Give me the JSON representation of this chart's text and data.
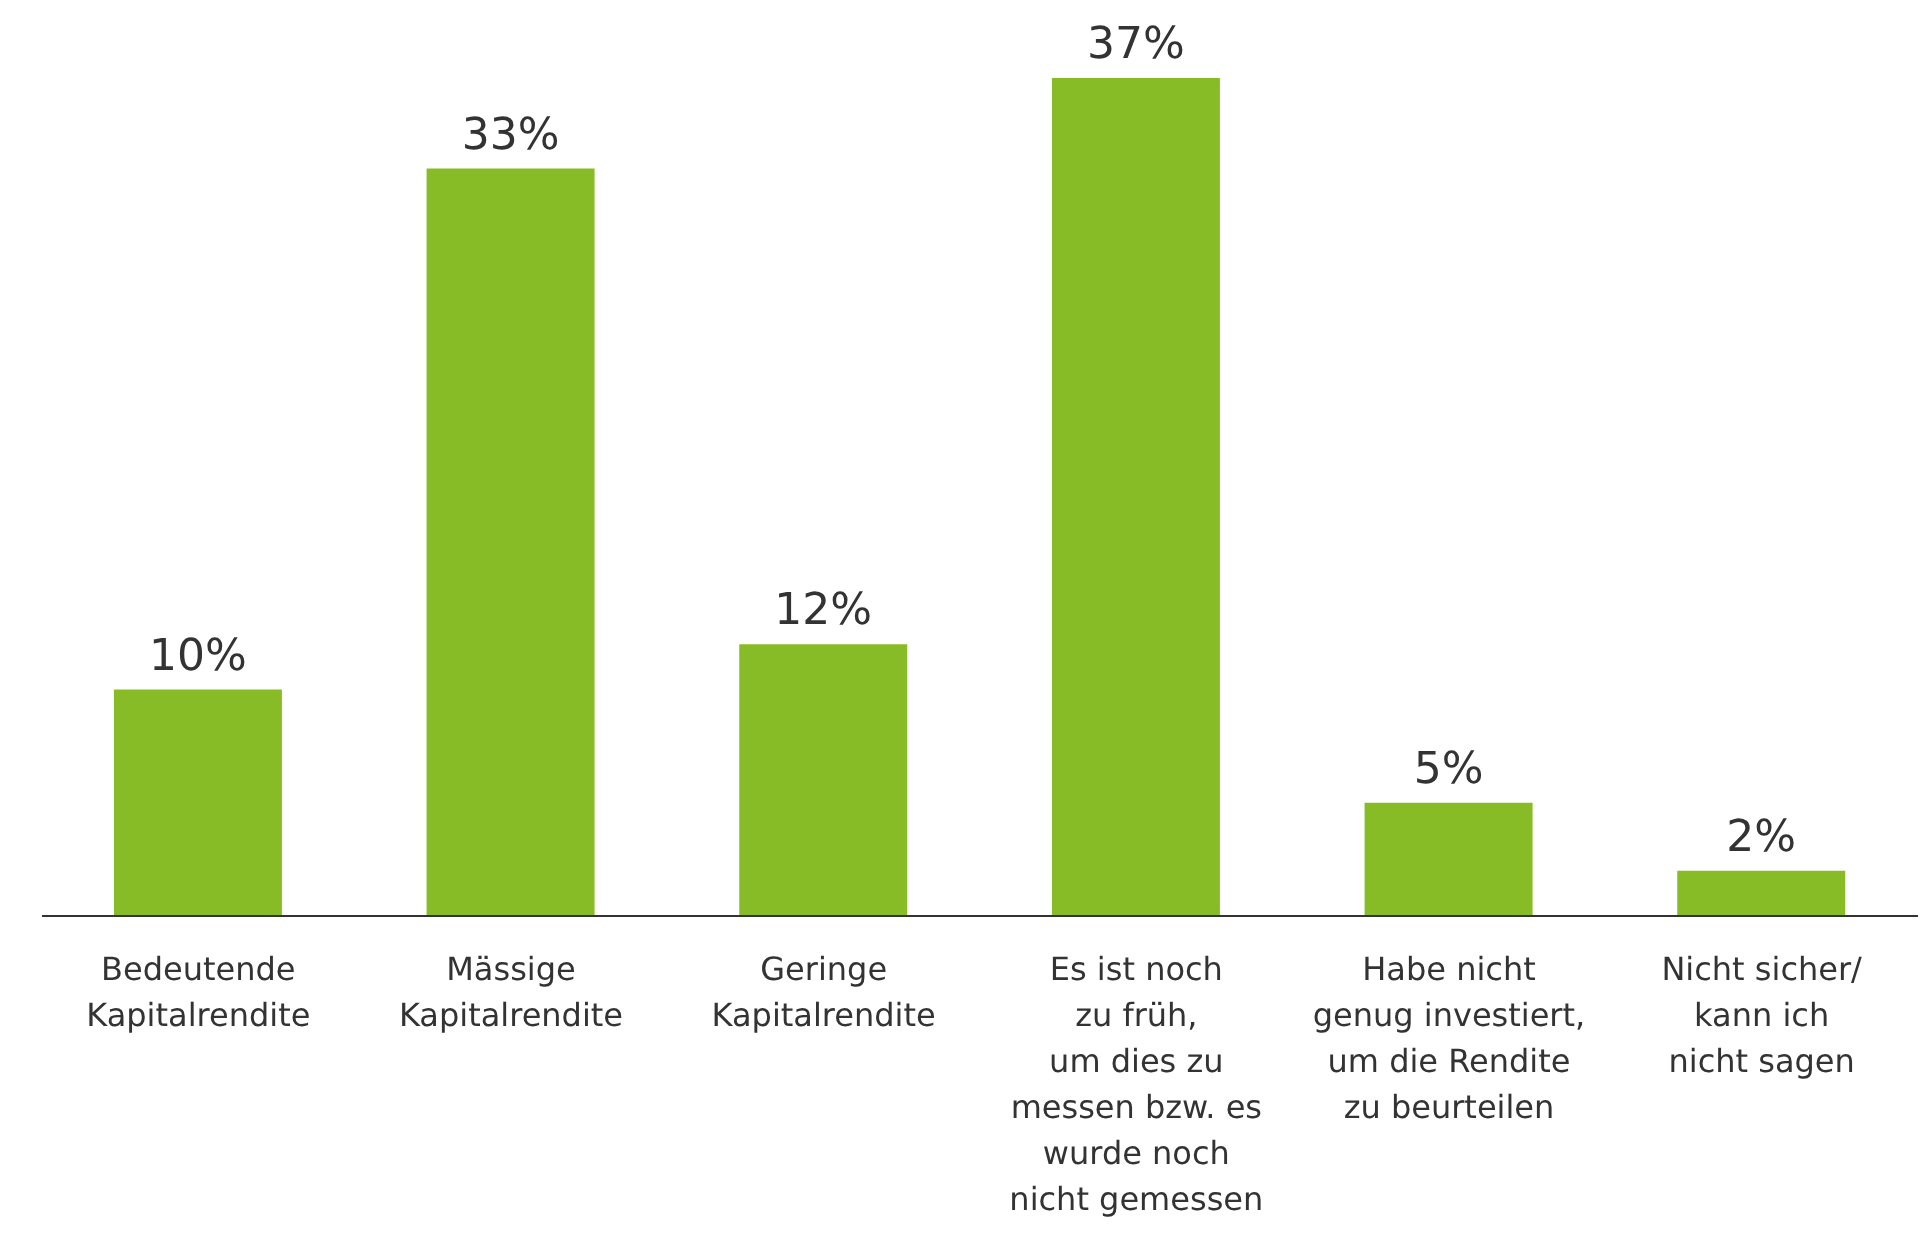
{
  "chart_data": {
    "type": "bar",
    "categories": [
      "Bedeutende\nKapitalrendite",
      "Mässige\nKapitalrendite",
      "Geringe\nKapitalrendite",
      "Es ist noch\nzu früh,\num dies zu\nmessen bzw. es\nwurde noch\nnicht gemessen",
      "Habe nicht\ngenug investiert,\num die Rendite\nzu beurteilen",
      "Nicht sicher/\nkann ich\nnicht sagen"
    ],
    "values": [
      10,
      33,
      12,
      37,
      5,
      2
    ],
    "value_labels": [
      "10%",
      "33%",
      "12%",
      "37%",
      "5%",
      "2%"
    ],
    "color": "#88bc27",
    "grid": false,
    "legend": false,
    "tick_labels": "x"
  }
}
